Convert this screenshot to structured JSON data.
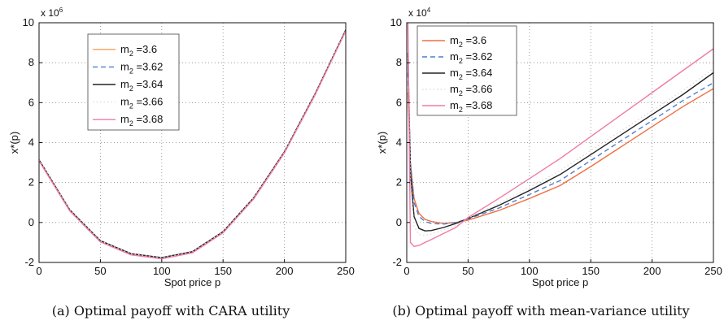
{
  "chart_data": [
    {
      "type": "line",
      "caption": "(a) Optimal payoff with CARA utility",
      "xlabel": "Spot price p",
      "ylabel": "x*(p)",
      "y_multiplier_base": "x 10",
      "y_multiplier_exp": "6",
      "xlim": [
        0,
        250
      ],
      "ylim": [
        -2,
        10
      ],
      "xticks": [
        0,
        50,
        100,
        150,
        200,
        250
      ],
      "yticks": [
        -2,
        0,
        2,
        4,
        6,
        8,
        10
      ],
      "grid": true,
      "legend_position": "top-left",
      "x": [
        0,
        25,
        50,
        75,
        100,
        125,
        150,
        175,
        200,
        225,
        250
      ],
      "series": [
        {
          "name_main": "m",
          "name_sub": "2",
          "name_value": " =3.6",
          "color": "#f5a05a",
          "dash": "solid",
          "values": [
            3.1,
            0.6,
            -0.95,
            -1.6,
            -1.8,
            -1.5,
            -0.5,
            1.2,
            3.5,
            6.4,
            9.6
          ]
        },
        {
          "name_main": "m",
          "name_sub": "2",
          "name_value": " =3.62",
          "color": "#4a7fd0",
          "dash": "dashed",
          "values": [
            3.12,
            0.62,
            -0.93,
            -1.58,
            -1.78,
            -1.48,
            -0.48,
            1.22,
            3.52,
            6.42,
            9.62
          ]
        },
        {
          "name_main": "m",
          "name_sub": "2",
          "name_value": " =3.64",
          "color": "#222222",
          "dash": "solid",
          "values": [
            3.14,
            0.64,
            -0.91,
            -1.56,
            -1.76,
            -1.46,
            -0.46,
            1.24,
            3.54,
            6.44,
            9.64
          ]
        },
        {
          "name_main": "m",
          "name_sub": "2",
          "name_value": " =3.66",
          "color": "#dddddd",
          "dash": "dotted",
          "values": [
            3.13,
            0.63,
            -0.92,
            -1.57,
            -1.77,
            -1.47,
            -0.47,
            1.23,
            3.53,
            6.43,
            9.63
          ]
        },
        {
          "name_main": "m",
          "name_sub": "2",
          "name_value": " =3.68",
          "color": "#f07aa8",
          "dash": "solid",
          "values": [
            3.08,
            0.58,
            -0.97,
            -1.62,
            -1.82,
            -1.52,
            -0.52,
            1.18,
            3.48,
            6.38,
            9.58
          ]
        }
      ]
    },
    {
      "type": "line",
      "caption": "(b) Optimal payoff with mean-variance utility",
      "xlabel": "Spot price p",
      "ylabel": "x*(p)",
      "y_multiplier_base": "x 10",
      "y_multiplier_exp": "4",
      "xlim": [
        0,
        250
      ],
      "ylim": [
        -2,
        10
      ],
      "xticks": [
        0,
        50,
        100,
        150,
        200,
        250
      ],
      "yticks": [
        -2,
        0,
        2,
        4,
        6,
        8,
        10
      ],
      "grid": true,
      "legend_position": "top-left",
      "x": [
        1,
        3,
        6,
        10,
        15,
        20,
        30,
        40,
        50,
        75,
        100,
        125,
        150,
        175,
        200,
        225,
        250
      ],
      "series": [
        {
          "name_main": "m",
          "name_sub": "2",
          "name_value": " =3.6",
          "color": "#f07040",
          "dash": "solid",
          "values": [
            6.5,
            3.0,
            1.2,
            0.45,
            0.15,
            0.05,
            -0.05,
            0.0,
            0.12,
            0.6,
            1.2,
            1.85,
            2.8,
            3.8,
            4.8,
            5.8,
            6.7
          ]
        },
        {
          "name_main": "m",
          "name_sub": "2",
          "name_value": " =3.62",
          "color": "#4a7fd0",
          "dash": "dashed",
          "values": [
            7.5,
            3.0,
            1.0,
            0.3,
            0.05,
            -0.05,
            -0.08,
            0.0,
            0.18,
            0.72,
            1.4,
            2.1,
            3.1,
            4.1,
            5.1,
            6.1,
            7.0
          ]
        },
        {
          "name_main": "m",
          "name_sub": "2",
          "name_value": " =3.64",
          "color": "#222222",
          "dash": "solid",
          "values": [
            8.5,
            2.5,
            0.3,
            -0.3,
            -0.42,
            -0.4,
            -0.25,
            -0.05,
            0.2,
            0.85,
            1.6,
            2.4,
            3.4,
            4.4,
            5.4,
            6.4,
            7.5
          ]
        },
        {
          "name_main": "m",
          "name_sub": "2",
          "name_value": " =3.66",
          "color": "#dddddd",
          "dash": "dotted",
          "values": [
            9.0,
            2.0,
            -0.2,
            -0.6,
            -0.65,
            -0.58,
            -0.38,
            -0.15,
            0.22,
            0.95,
            1.75,
            2.6,
            3.6,
            4.6,
            5.6,
            6.6,
            7.7
          ]
        },
        {
          "name_main": "m",
          "name_sub": "2",
          "name_value": " =3.68",
          "color": "#f07aa8",
          "dash": "solid",
          "values": [
            10.0,
            -1.0,
            -1.2,
            -1.15,
            -1.0,
            -0.85,
            -0.55,
            -0.25,
            0.25,
            1.2,
            2.2,
            3.2,
            4.3,
            5.4,
            6.5,
            7.6,
            8.7
          ]
        }
      ]
    }
  ]
}
